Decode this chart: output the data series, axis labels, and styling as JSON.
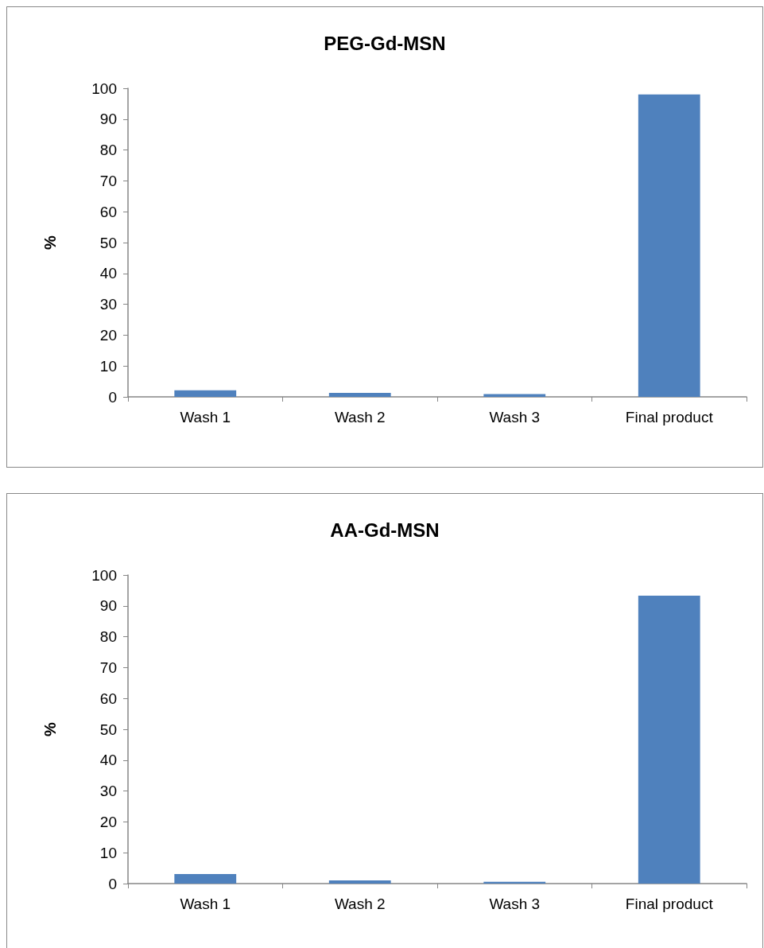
{
  "chart_data": [
    {
      "type": "bar",
      "title": "PEG-Gd-MSN",
      "ylabel": "%",
      "categories": [
        "Wash 1",
        "Wash 2",
        "Wash 3",
        "Final product"
      ],
      "values": [
        2.1,
        1.3,
        0.9,
        98
      ],
      "color": "#4f81bd",
      "ylim": [
        0,
        100
      ],
      "yticks": [
        0,
        10,
        20,
        30,
        40,
        50,
        60,
        70,
        80,
        90,
        100
      ]
    },
    {
      "type": "bar",
      "title": "AA-Gd-MSN",
      "ylabel": "%",
      "categories": [
        "Wash 1",
        "Wash 2",
        "Wash 3",
        "Final product"
      ],
      "values": [
        3.1,
        1.0,
        0.6,
        93.3
      ],
      "color": "#4f81bd",
      "ylim": [
        0,
        100
      ],
      "yticks": [
        0,
        10,
        20,
        30,
        40,
        50,
        60,
        70,
        80,
        90,
        100
      ]
    }
  ]
}
